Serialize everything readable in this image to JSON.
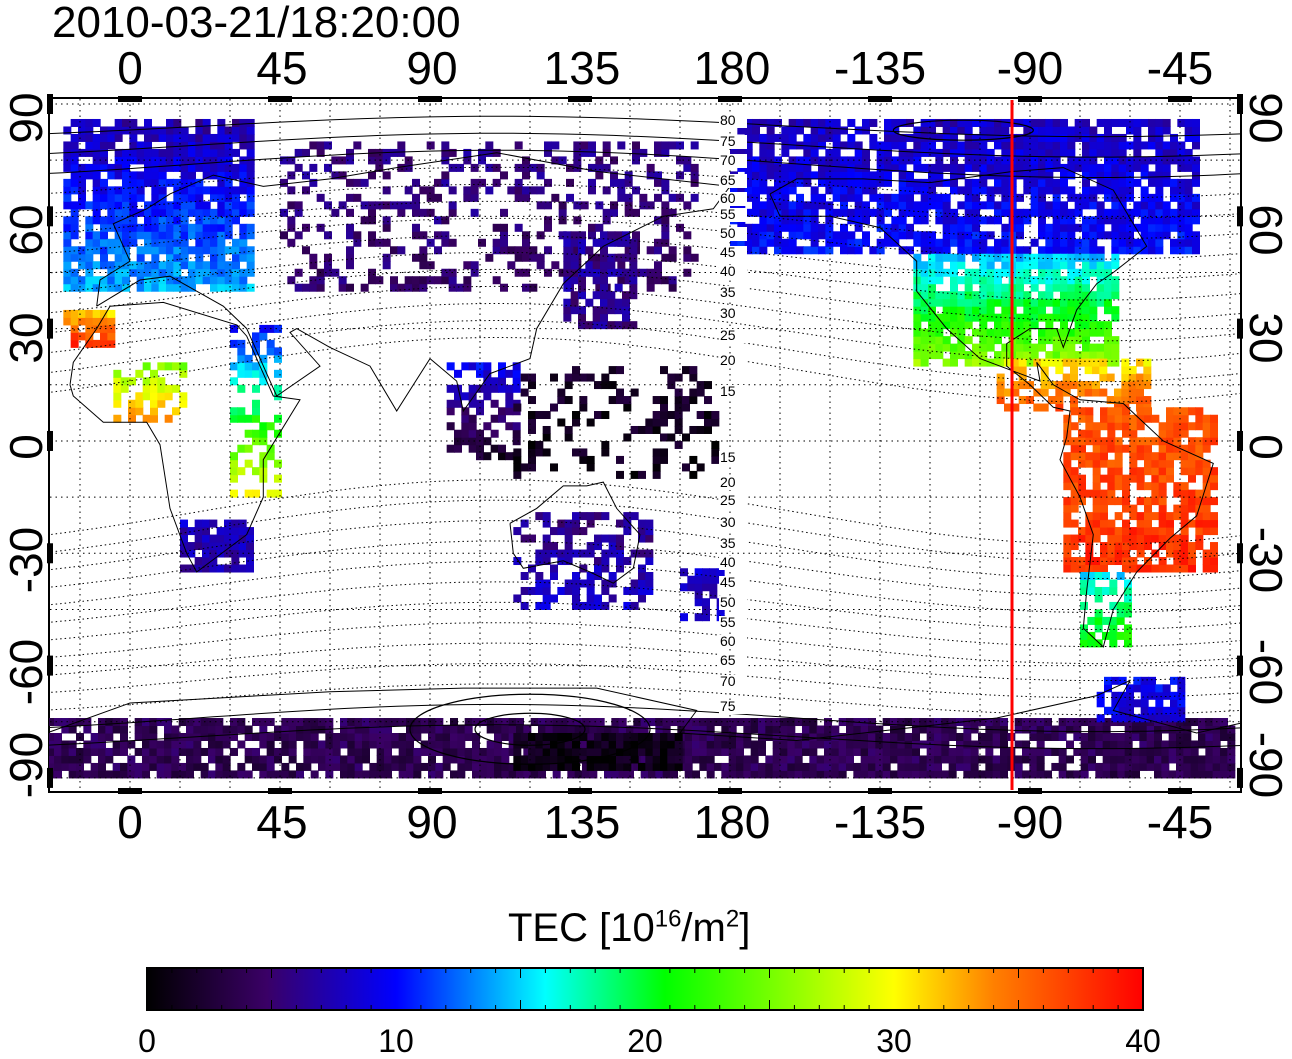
{
  "timestamp": "2010-03-21/18:20:00",
  "map": {
    "longitude_ticks_top": [
      "0",
      "45",
      "90",
      "135",
      "180",
      "-135",
      "-90",
      "-45"
    ],
    "longitude_ticks_bottom": [
      "0",
      "45",
      "90",
      "135",
      "180",
      "-135",
      "-90",
      "-45"
    ],
    "latitude_ticks_left": [
      "90",
      "60",
      "30",
      "0",
      "-30",
      "-60",
      "-90"
    ],
    "latitude_ticks_right": [
      "90",
      "60",
      "30",
      "0",
      "-30",
      "-60",
      "-90"
    ],
    "contour_labels": [
      "80",
      "75",
      "70",
      "65",
      "60",
      "55",
      "50",
      "45",
      "40",
      "35",
      "30",
      "25",
      "20",
      "15",
      "15",
      "20",
      "25",
      "30",
      "35",
      "40",
      "45",
      "50",
      "55",
      "60",
      "65",
      "70",
      "75"
    ],
    "marker_longitude": -90,
    "marker_color": "#ff0000"
  },
  "colorbar": {
    "title_prefix": "TEC  [10",
    "title_exp1": "16",
    "title_mid": "/m",
    "title_exp2": "2",
    "title_suffix": "]",
    "labels": [
      "0",
      "10",
      "20",
      "30",
      "40"
    ],
    "range": [
      0,
      40
    ],
    "colors": [
      "#000000",
      "#3a0066",
      "#0000ff",
      "#00ffff",
      "#00ff00",
      "#ffff00",
      "#ff0000"
    ]
  }
}
